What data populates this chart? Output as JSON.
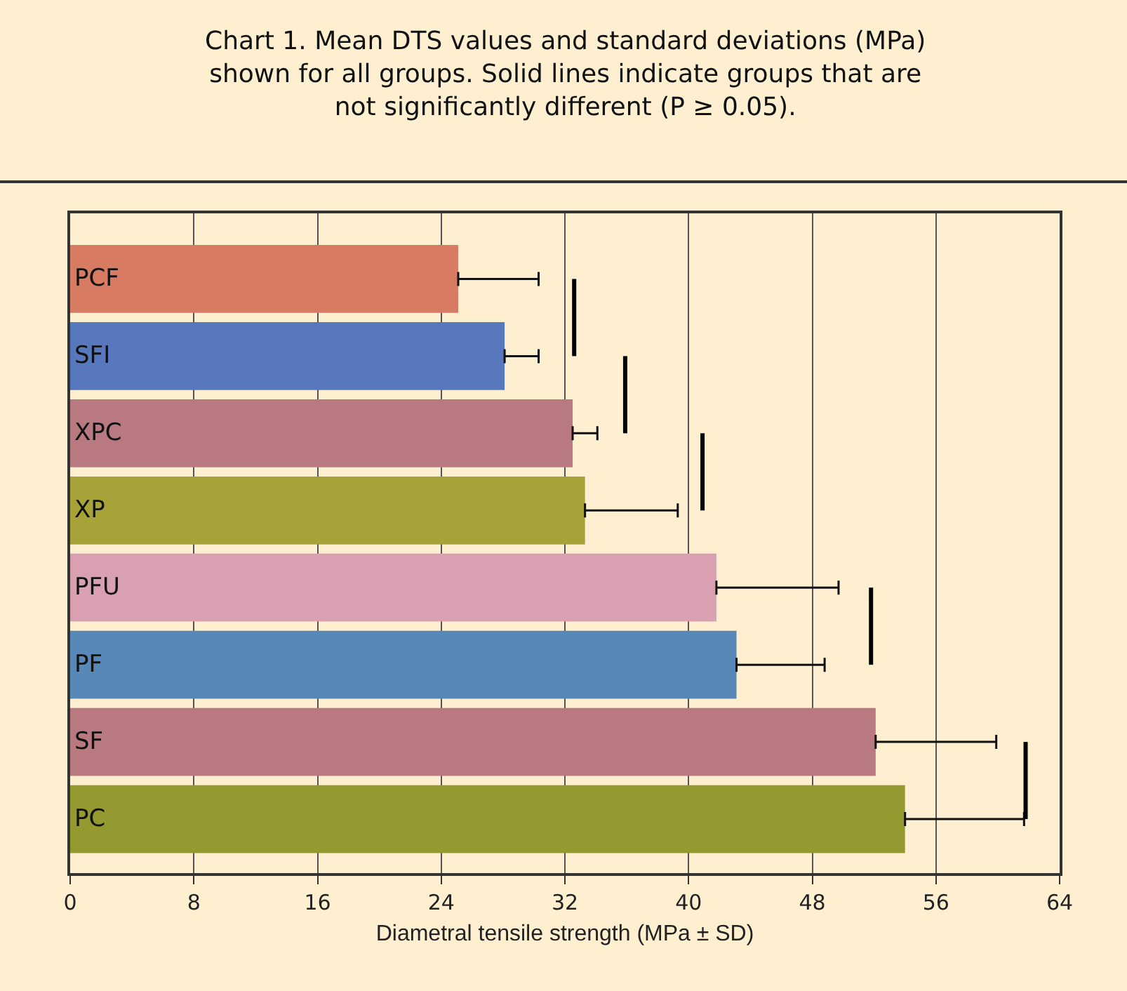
{
  "chart_data": {
    "type": "bar",
    "orientation": "horizontal",
    "title": "Chart 1. Mean DTS values and standard deviations (MPa)\nshown for all groups. Solid lines indicate groups that are\nnot significantly different (P ≥ 0.05).",
    "xlabel": "Diametral tensile strength (MPa ± SD)",
    "categories": [
      "PCF",
      "SFI",
      "XPC",
      "XP",
      "PFU",
      "PF",
      "SF",
      "PC"
    ],
    "series": [
      {
        "values": [
          25.1,
          28.1,
          32.5,
          33.3,
          41.8,
          43.1,
          52.1,
          54.0
        ],
        "colors": [
          "#d77b63",
          "#5878bd",
          "#b87a80",
          "#a8a338",
          "#d8a0b0",
          "#5888b8",
          "#b87a80",
          "#949a30"
        ],
        "errors": [
          [
            25.1,
            30.3
          ],
          [
            28.1,
            30.3
          ],
          [
            32.5,
            34.1
          ],
          [
            33.3,
            39.3
          ],
          [
            41.8,
            49.7
          ],
          [
            43.1,
            48.8
          ],
          [
            52.1,
            59.9
          ],
          [
            54.0,
            61.7
          ]
        ]
      },
      {
        "type": "line",
        "values": [
          32.6,
          32.6,
          null,
          null,
          null,
          null,
          null,
          null
        ],
        "color": "#000000"
      },
      {
        "type": "line",
        "values": [
          null,
          35.9,
          35.9,
          null,
          null,
          null,
          null,
          null
        ],
        "color": "#000000"
      },
      {
        "type": "line",
        "values": [
          null,
          null,
          40.9,
          40.9,
          null,
          null,
          null,
          null
        ],
        "color": "#000000"
      },
      {
        "type": "line",
        "values": [
          null,
          null,
          null,
          null,
          51.8,
          51.8,
          null,
          null
        ],
        "color": "#000000"
      },
      {
        "type": "line",
        "values": [
          null,
          null,
          null,
          null,
          null,
          null,
          61.8,
          61.8
        ],
        "color": "#000000"
      }
    ],
    "xlim": [
      0,
      64
    ],
    "xticks": [
      0,
      8,
      16,
      24,
      32,
      40,
      48,
      56,
      64
    ],
    "grid": "x",
    "tick_labels": "x"
  }
}
